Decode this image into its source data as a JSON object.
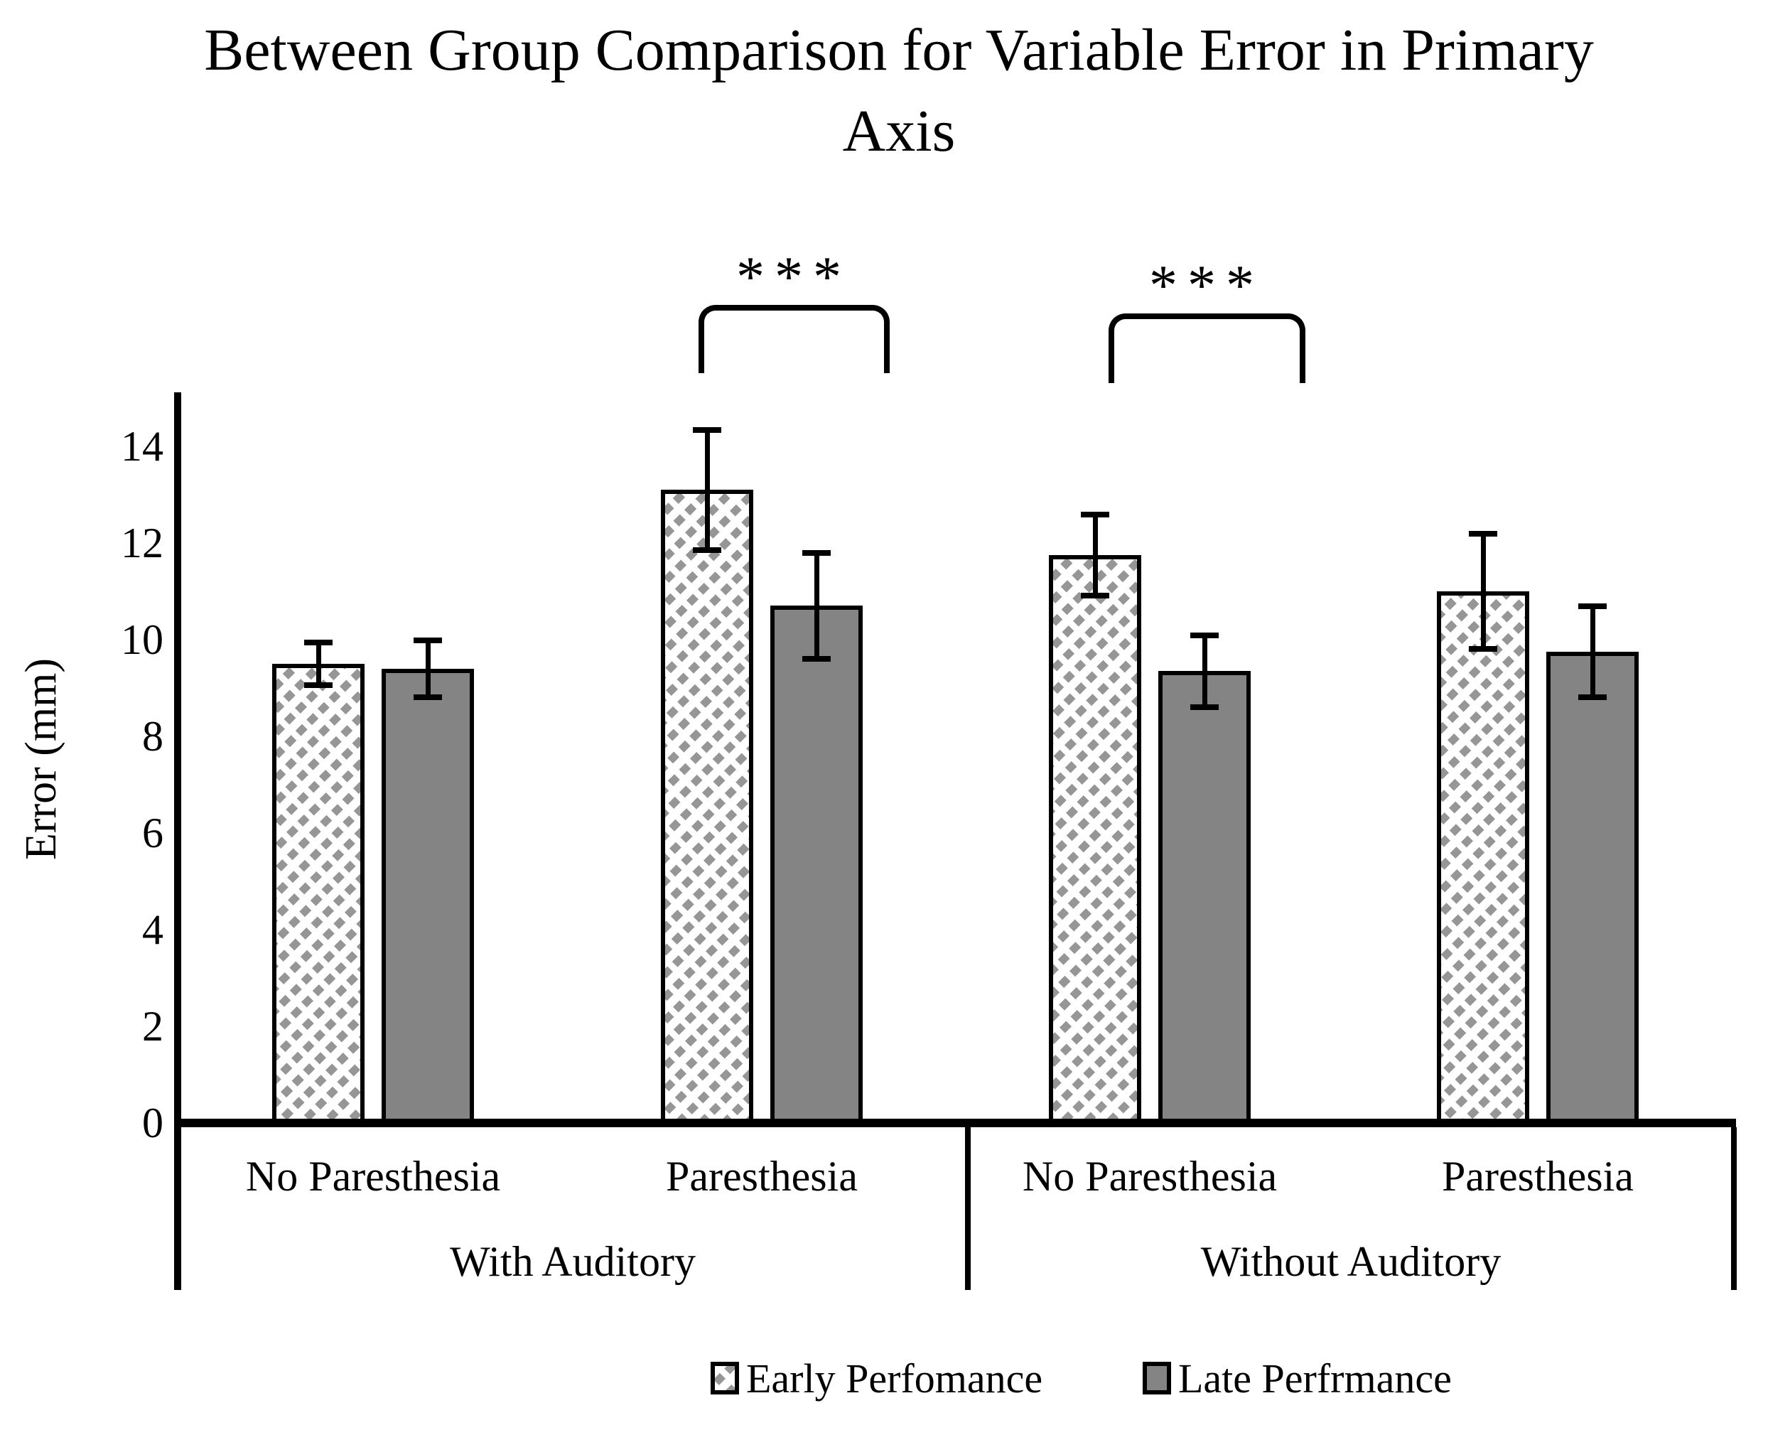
{
  "title": {
    "line1": "Between Group Comparison for Variable Error in Primary",
    "line2": "Axis"
  },
  "y_axis": {
    "label": "Error (mm)"
  },
  "x_axis": {
    "groups": [
      {
        "label": "With Auditory",
        "categories": [
          "No Paresthesia",
          "Paresthesia"
        ]
      },
      {
        "label": "Without Auditory",
        "categories": [
          "No Paresthesia",
          "Paresthesia"
        ]
      }
    ]
  },
  "legend": [
    {
      "label": "Early Perfomance",
      "swatch": "hatched-diagonal"
    },
    {
      "label": "Late Perfrmance",
      "swatch": "gray-solid"
    }
  ],
  "significance": [
    {
      "stars": "***",
      "group": "With Auditory",
      "category": "Paresthesia"
    },
    {
      "stars": "***",
      "group": "Without Auditory",
      "category": "No Paresthesia"
    }
  ],
  "colors": {
    "late_fill": "#848484",
    "hatch_gray": "#969696",
    "line": "#000000",
    "background": "#ffffff"
  },
  "chart_data": {
    "type": "bar",
    "title": "Between Group Comparison for Variable Error in Primary Axis",
    "xlabel": "",
    "ylabel": "Error (mm)",
    "ylim": [
      0,
      15
    ],
    "yticks": [
      0,
      2,
      4,
      6,
      8,
      10,
      12,
      14
    ],
    "grid": false,
    "legend_position": "bottom",
    "error_bars": true,
    "categories": [
      "With Auditory - No Paresthesia",
      "With Auditory - Paresthesia",
      "Without Auditory - No Paresthesia",
      "Without Auditory - Paresthesia"
    ],
    "series": [
      {
        "name": "Early Perfomance",
        "values": [
          9.5,
          13.1,
          11.75,
          11.0
        ],
        "errors": [
          0.5,
          1.3,
          0.9,
          1.25
        ]
      },
      {
        "name": "Late Perfrmance",
        "values": [
          9.4,
          10.7,
          9.35,
          9.75
        ],
        "errors": [
          0.65,
          1.15,
          0.8,
          1.0
        ]
      }
    ],
    "annotations": [
      {
        "text": "***",
        "between": [
          "Early Perfomance",
          "Late Perfrmance"
        ],
        "category_index": 1
      },
      {
        "text": "***",
        "between": [
          "Early Perfomance",
          "Late Perfrmance"
        ],
        "category_index": 2
      }
    ]
  }
}
